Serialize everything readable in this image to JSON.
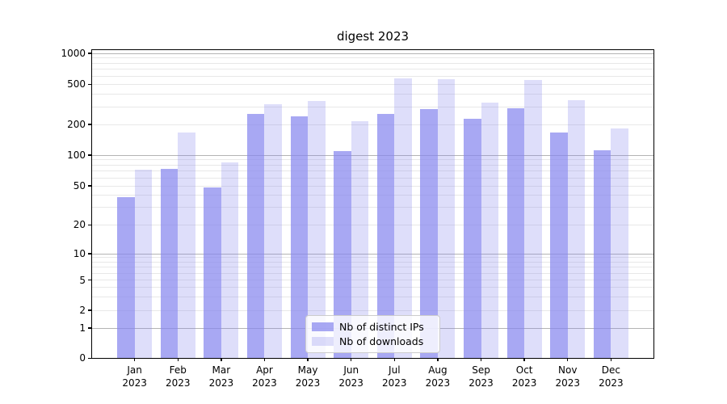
{
  "chart_data": {
    "type": "bar",
    "title": "digest 2023",
    "categories": [
      "Jan 2023",
      "Feb 2023",
      "Mar 2023",
      "Apr 2023",
      "May 2023",
      "Jun 2023",
      "Jul 2023",
      "Aug 2023",
      "Sep 2023",
      "Oct 2023",
      "Nov 2023",
      "Dec 2023"
    ],
    "series": [
      {
        "name": "Nb of distinct IPs",
        "color": "#8686ee",
        "alpha": 0.72,
        "values": [
          38,
          74,
          48,
          254,
          239,
          110,
          255,
          285,
          227,
          290,
          167,
          112
        ]
      },
      {
        "name": "Nb of downloads",
        "color": "#8686ee",
        "alpha": 0.27,
        "values": [
          72,
          166,
          85,
          320,
          342,
          215,
          567,
          560,
          328,
          550,
          346,
          183
        ]
      }
    ],
    "xlabel": "",
    "ylabel": "",
    "yscale": "symlog",
    "yticks": [
      0,
      1,
      2,
      5,
      10,
      20,
      50,
      100,
      200,
      500,
      1000
    ],
    "ylim": [
      0,
      1100
    ],
    "grid": "on",
    "legend_position": "lower center",
    "colors": {
      "grid_major": "#b4b4b4",
      "grid_minor": "#e8e8e8",
      "axis": "#000000",
      "background": "#ffffff"
    }
  }
}
